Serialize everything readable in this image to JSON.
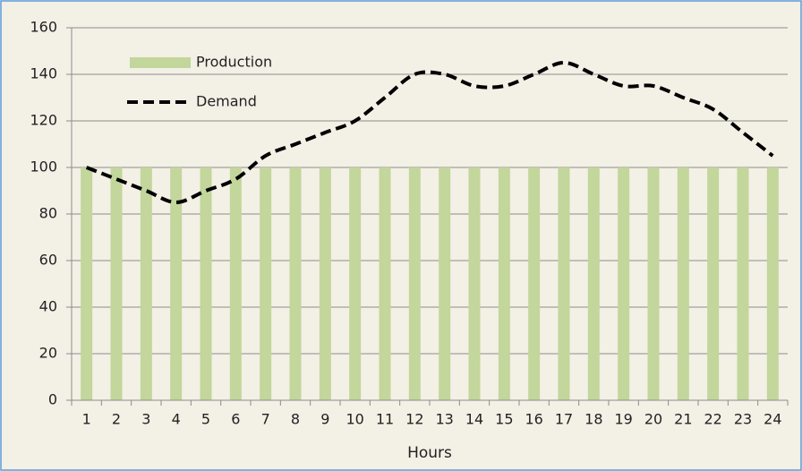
{
  "chart_data": {
    "type": "bar",
    "categories": [
      "1",
      "2",
      "3",
      "4",
      "5",
      "6",
      "7",
      "8",
      "9",
      "10",
      "11",
      "12",
      "13",
      "14",
      "15",
      "16",
      "17",
      "18",
      "19",
      "20",
      "21",
      "22",
      "23",
      "24"
    ],
    "series": [
      {
        "name": "Production",
        "type": "bar",
        "color": "#c3d69b",
        "values": [
          100,
          100,
          100,
          100,
          100,
          100,
          100,
          100,
          100,
          100,
          100,
          100,
          100,
          100,
          100,
          100,
          100,
          100,
          100,
          100,
          100,
          100,
          100,
          100
        ]
      },
      {
        "name": "Demand",
        "type": "line",
        "color": "#000000",
        "values": [
          100,
          95,
          90,
          85,
          90,
          95,
          105,
          110,
          115,
          120,
          130,
          140,
          140,
          135,
          135,
          140,
          145,
          140,
          135,
          135,
          130,
          125,
          115,
          105
        ]
      }
    ],
    "xlabel": "Hours",
    "ylim": [
      0,
      160
    ],
    "yticks": [
      0,
      20,
      40,
      60,
      80,
      100,
      120,
      140,
      160
    ],
    "grid": true,
    "legend": "upper left"
  }
}
